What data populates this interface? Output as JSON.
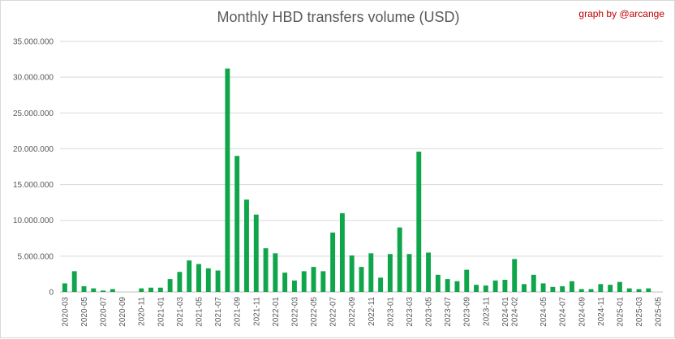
{
  "chart_data": {
    "type": "bar",
    "title": "Monthly HBD transfers volume (USD)",
    "annotation": "graph by @arcange",
    "xlabel": "",
    "ylabel": "",
    "ylim": [
      0,
      35000000
    ],
    "yticks": [
      "0",
      "5.000.000",
      "10.000.000",
      "15.000.000",
      "20.000.000",
      "25.000.000",
      "30.000.000",
      "35.000.000"
    ],
    "grid": true,
    "legend": "none",
    "bar_color": "#0fa54a",
    "categories": [
      "2020-03",
      "2020-04",
      "2020-05",
      "2020-06",
      "2020-07",
      "2020-08",
      "2020-09",
      "2020-10",
      "2020-11",
      "2020-12",
      "2021-01",
      "2021-02",
      "2021-03",
      "2021-04",
      "2021-05",
      "2021-06",
      "2021-07",
      "2021-08",
      "2021-09",
      "2021-10",
      "2021-11",
      "2021-12",
      "2022-01",
      "2022-02",
      "2022-03",
      "2022-04",
      "2022-05",
      "2022-06",
      "2022-07",
      "2022-08",
      "2022-09",
      "2022-10",
      "2022-11",
      "2022-12",
      "2023-01",
      "2023-02",
      "2023-03",
      "2023-04",
      "2023-05",
      "2023-06",
      "2023-07",
      "2023-08",
      "2023-09",
      "2023-10",
      "2023-11",
      "2023-12",
      "2024-01",
      "2024-02",
      "2024-03",
      "2024-04",
      "2024-05",
      "2024-06",
      "2024-07",
      "2024-08",
      "2024-09",
      "2024-10",
      "2024-11",
      "2024-12",
      "2025-01",
      "2025-02",
      "2025-03",
      "2025-04",
      "2025-05"
    ],
    "xtick_labels": [
      "2020-03",
      "2020-05",
      "2020-07",
      "2020-09",
      "2020-11",
      "2021-01",
      "2021-03",
      "2021-05",
      "2021-07",
      "2021-09",
      "2021-11",
      "2022-01",
      "2022-03",
      "2022-05",
      "2022-07",
      "2022-09",
      "2022-11",
      "2023-01",
      "2023-03",
      "2023-05",
      "2023-07",
      "2023-09",
      "2023-11",
      "2024-01",
      "2024-02",
      "2024-05",
      "2024-07",
      "2024-09",
      "2024-11",
      "2025-01",
      "2025-03",
      "2025-05"
    ],
    "values": [
      1200000,
      2900000,
      800000,
      500000,
      200000,
      400000,
      0,
      0,
      500000,
      600000,
      600000,
      1800000,
      2800000,
      4400000,
      3900000,
      3300000,
      3000000,
      31200000,
      19000000,
      12900000,
      10800000,
      6100000,
      5400000,
      2700000,
      1600000,
      2900000,
      3500000,
      2900000,
      8300000,
      11000000,
      5100000,
      3500000,
      5400000,
      2000000,
      5300000,
      9000000,
      5300000,
      19600000,
      5500000,
      2400000,
      1800000,
      1500000,
      3100000,
      1000000,
      900000,
      1600000,
      1700000,
      4600000,
      1100000,
      2400000,
      1200000,
      700000,
      800000,
      1500000,
      400000,
      400000,
      1100000,
      1000000,
      1400000,
      500000,
      400000,
      500000,
      0
    ]
  }
}
